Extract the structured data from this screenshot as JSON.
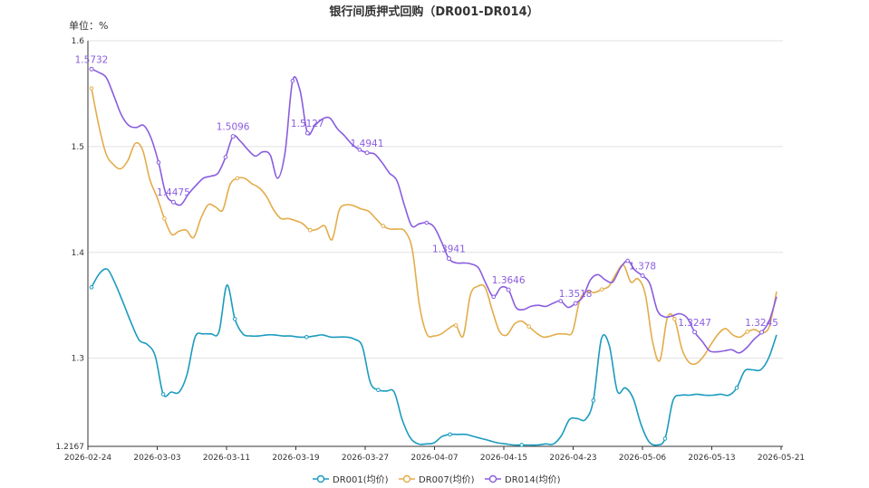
{
  "chart_data": {
    "type": "line",
    "title": "银行间质押式回购（DR001-DR014）",
    "unit_label": "单位：%",
    "ylim": [
      1.2167,
      1.6
    ],
    "yticks": [
      "1.2167",
      "1.3",
      "1.4",
      "1.5",
      "1.6"
    ],
    "ytick_values": [
      1.2167,
      1.3,
      1.4,
      1.5,
      1.6
    ],
    "xlabels": [
      "2026-02-24",
      "2026-03-03",
      "2026-03-11",
      "2026-03-19",
      "2026-03-27",
      "2026-04-07",
      "2026-04-15",
      "2026-04-23",
      "2026-05-06",
      "2026-05-13",
      "2026-05-21"
    ],
    "grid": true,
    "legend_position": "bottom",
    "series": [
      {
        "name": "DR001(均价)",
        "color": "#1b9bbf",
        "values": [
          1.367,
          1.38,
          1.384,
          1.37,
          1.352,
          1.333,
          1.317,
          1.313,
          1.302,
          1.266,
          1.268,
          1.268,
          1.285,
          1.32,
          1.323,
          1.323,
          1.325,
          1.369,
          1.337,
          1.323,
          1.321,
          1.321,
          1.322,
          1.322,
          1.321,
          1.321,
          1.32,
          1.32,
          1.321,
          1.322,
          1.32,
          1.32,
          1.32,
          1.318,
          1.311,
          1.277,
          1.27,
          1.269,
          1.268,
          1.242,
          1.225,
          1.219,
          1.219,
          1.22,
          1.226,
          1.228,
          1.228,
          1.228,
          1.226,
          1.224,
          1.222,
          1.22,
          1.219,
          1.218,
          1.218,
          1.218,
          1.218,
          1.219,
          1.219,
          1.227,
          1.242,
          1.243,
          1.242,
          1.26,
          1.318,
          1.312,
          1.269,
          1.272,
          1.262,
          1.237,
          1.221,
          1.218,
          1.224,
          1.26,
          1.265,
          1.265,
          1.266,
          1.265,
          1.265,
          1.266,
          1.265,
          1.272,
          1.288,
          1.289,
          1.289,
          1.3,
          1.322
        ],
        "labels": []
      },
      {
        "name": "DR007(均价)",
        "color": "#e3ac4a",
        "values": [
          1.555,
          1.52,
          1.493,
          1.483,
          1.479,
          1.487,
          1.503,
          1.497,
          1.469,
          1.452,
          1.432,
          1.417,
          1.42,
          1.421,
          1.414,
          1.432,
          1.445,
          1.443,
          1.44,
          1.464,
          1.47,
          1.47,
          1.465,
          1.461,
          1.453,
          1.44,
          1.432,
          1.432,
          1.43,
          1.427,
          1.421,
          1.422,
          1.425,
          1.412,
          1.44,
          1.445,
          1.444,
          1.441,
          1.439,
          1.432,
          1.425,
          1.422,
          1.422,
          1.42,
          1.403,
          1.35,
          1.323,
          1.321,
          1.323,
          1.328,
          1.331,
          1.321,
          1.36,
          1.368,
          1.367,
          1.345,
          1.325,
          1.322,
          1.332,
          1.335,
          1.33,
          1.324,
          1.32,
          1.321,
          1.323,
          1.323,
          1.325,
          1.355,
          1.363,
          1.362,
          1.365,
          1.368,
          1.38,
          1.388,
          1.372,
          1.375,
          1.36,
          1.315,
          1.298,
          1.338,
          1.337,
          1.309,
          1.296,
          1.295,
          1.302,
          1.313,
          1.323,
          1.328,
          1.322,
          1.32,
          1.325,
          1.327,
          1.324,
          1.33,
          1.363
        ],
        "labels": []
      },
      {
        "name": "DR014(均价)",
        "color": "#8a5ddf",
        "values": [
          1.5732,
          1.57,
          1.565,
          1.548,
          1.53,
          1.52,
          1.518,
          1.52,
          1.508,
          1.485,
          1.455,
          1.4475,
          1.445,
          1.455,
          1.463,
          1.47,
          1.472,
          1.475,
          1.49,
          1.5096,
          1.505,
          1.497,
          1.491,
          1.495,
          1.492,
          1.47,
          1.495,
          1.562,
          1.553,
          1.5127,
          1.52,
          1.526,
          1.527,
          1.517,
          1.51,
          1.502,
          1.497,
          1.4941,
          1.493,
          1.485,
          1.475,
          1.468,
          1.445,
          1.425,
          1.427,
          1.428,
          1.424,
          1.41,
          1.3941,
          1.39,
          1.39,
          1.389,
          1.385,
          1.37,
          1.358,
          1.367,
          1.3646,
          1.348,
          1.346,
          1.349,
          1.35,
          1.349,
          1.352,
          1.354,
          1.348,
          1.3518,
          1.358,
          1.374,
          1.379,
          1.374,
          1.372,
          1.385,
          1.392,
          1.383,
          1.378,
          1.37,
          1.345,
          1.339,
          1.34,
          1.342,
          1.338,
          1.3247,
          1.316,
          1.307,
          1.306,
          1.307,
          1.308,
          1.305,
          1.31,
          1.318,
          1.3245,
          1.335,
          1.358
        ],
        "labels": [
          "1.5732",
          "1.4475",
          "1.5096",
          "1.5127",
          "1.4941",
          "1.3941",
          "1.3646",
          "1.3518",
          "1.378",
          "1.3247",
          "1.3245"
        ],
        "label_indices": [
          0,
          11,
          19,
          29,
          37,
          48,
          56,
          65,
          74,
          81,
          90
        ]
      }
    ]
  }
}
